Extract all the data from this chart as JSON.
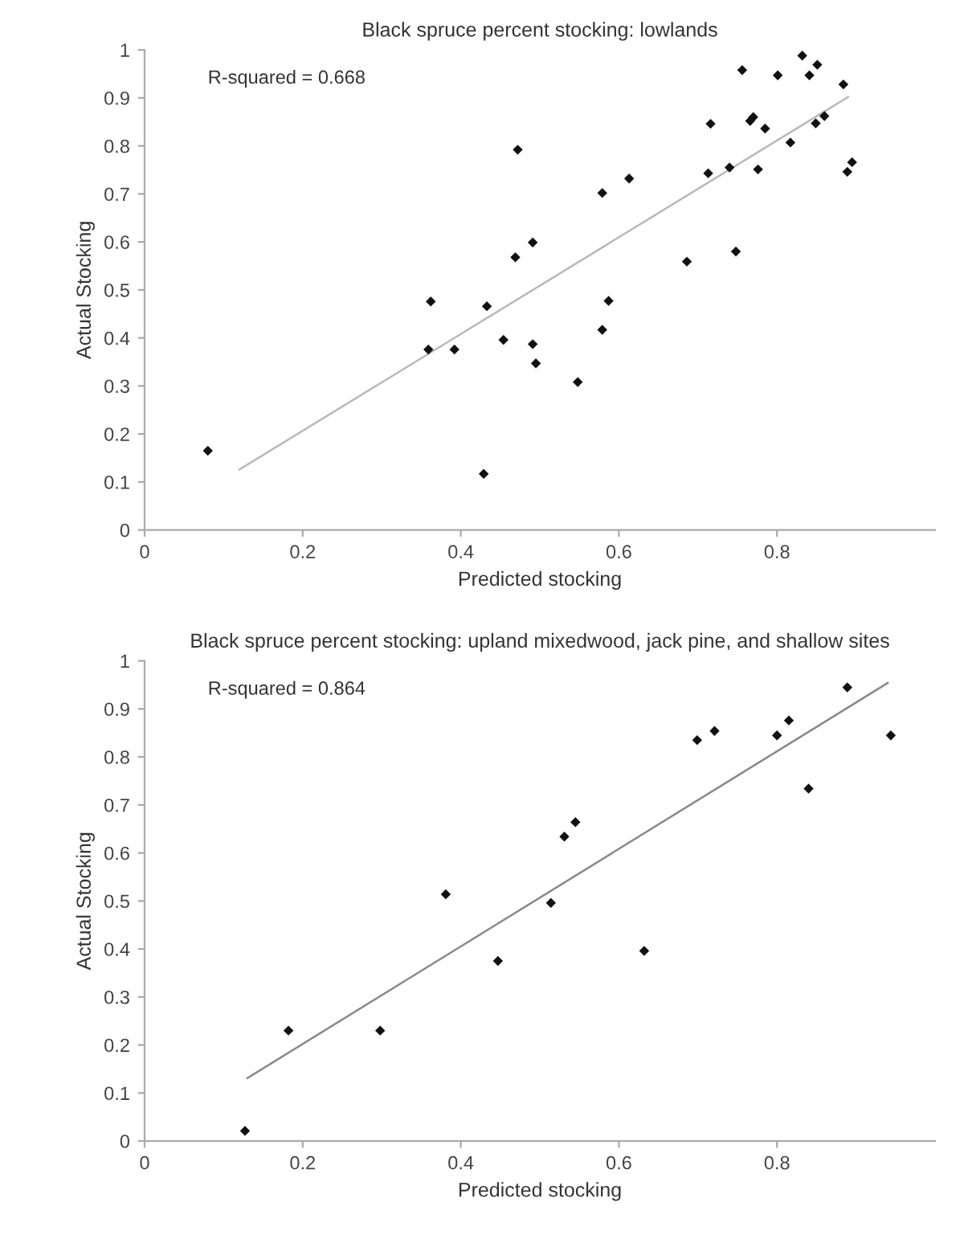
{
  "chart_data": [
    {
      "type": "scatter",
      "title": "Black spruce percent stocking: lowlands",
      "xlabel": "Predicted stocking",
      "ylabel": "Actual Stocking",
      "annotations": [
        "R-squared = 0.668"
      ],
      "xlim": [
        0,
        1
      ],
      "ylim": [
        0,
        1
      ],
      "xticks": [
        0,
        0.2,
        0.4,
        0.6,
        0.8
      ],
      "yticks": [
        0,
        0.1,
        0.2,
        0.3,
        0.4,
        0.5,
        0.6,
        0.7,
        0.8,
        0.9,
        1
      ],
      "grid": false,
      "series": [
        {
          "marker": "diamond",
          "color": "#111111",
          "x": [
            0.756,
            0.801,
            0.832,
            0.841,
            0.851,
            0.884,
            0.716,
            0.766,
            0.77,
            0.785,
            0.849,
            0.86,
            0.817,
            0.713,
            0.74,
            0.776,
            0.889,
            0.895,
            0.472,
            0.579,
            0.613,
            0.491,
            0.469,
            0.686,
            0.748,
            0.362,
            0.433,
            0.587,
            0.359,
            0.392,
            0.454,
            0.491,
            0.495,
            0.579,
            0.548,
            0.08,
            0.429
          ],
          "values": [
            0.958,
            0.947,
            0.988,
            0.947,
            0.969,
            0.928,
            0.846,
            0.852,
            0.86,
            0.836,
            0.847,
            0.862,
            0.807,
            0.743,
            0.755,
            0.751,
            0.746,
            0.766,
            0.792,
            0.702,
            0.732,
            0.599,
            0.568,
            0.559,
            0.58,
            0.476,
            0.466,
            0.477,
            0.376,
            0.376,
            0.396,
            0.387,
            0.347,
            0.417,
            0.308,
            0.165,
            0.117
          ]
        },
        {
          "type": "line",
          "color": "#b8b8b8",
          "x": [
            0.12,
            0.89
          ],
          "values": [
            0.126,
            0.902
          ]
        }
      ]
    },
    {
      "type": "scatter",
      "title": "Black spruce percent stocking: upland mixedwood, jack pine, and shallow sites",
      "xlabel": "Predicted stocking",
      "ylabel": "Actual Stocking",
      "annotations": [
        "R-squared = 0.864"
      ],
      "xlim": [
        0,
        1
      ],
      "ylim": [
        0,
        1
      ],
      "xticks": [
        0,
        0.2,
        0.4,
        0.6,
        0.8
      ],
      "yticks": [
        0,
        0.1,
        0.2,
        0.3,
        0.4,
        0.5,
        0.6,
        0.7,
        0.8,
        0.9,
        1
      ],
      "grid": false,
      "series": [
        {
          "marker": "diamond",
          "color": "#111111",
          "x": [
            0.889,
            0.699,
            0.721,
            0.8,
            0.815,
            0.944,
            0.84,
            0.531,
            0.545,
            0.381,
            0.514,
            0.447,
            0.632,
            0.182,
            0.298,
            0.127
          ],
          "values": [
            0.945,
            0.835,
            0.854,
            0.845,
            0.876,
            0.845,
            0.734,
            0.634,
            0.664,
            0.514,
            0.496,
            0.375,
            0.396,
            0.23,
            0.23,
            0.021
          ]
        },
        {
          "type": "line",
          "color": "#888888",
          "x": [
            0.13,
            0.94
          ],
          "values": [
            0.131,
            0.954
          ]
        }
      ]
    }
  ]
}
